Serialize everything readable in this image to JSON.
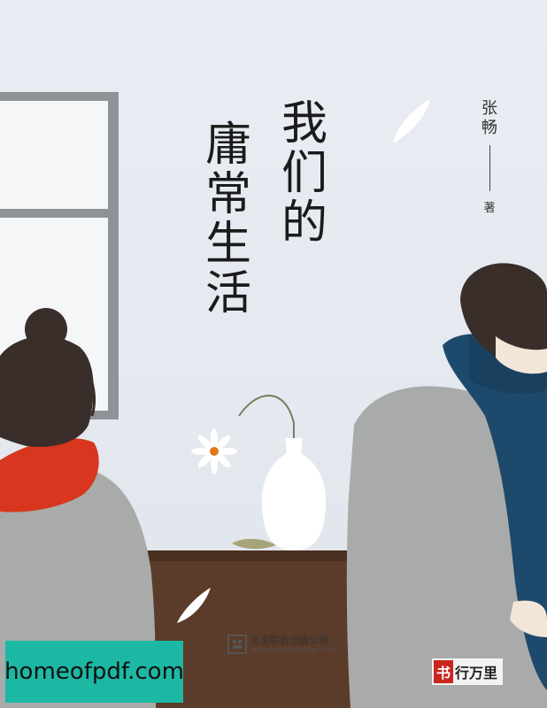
{
  "book": {
    "title_col_1": [
      "我",
      "们",
      "的"
    ],
    "title_col_2": [
      "庸",
      "常",
      "生",
      "活"
    ],
    "author_name": [
      "张",
      "畅"
    ],
    "author_role": "著"
  },
  "publisher": {
    "name_cn": "北京联合出版公司",
    "name_en": "Beijing United Publishing Co.,Ltd"
  },
  "brand": {
    "mark": "书",
    "text": "行万里"
  },
  "watermark": {
    "text": "homeofpdf.com"
  },
  "colors": {
    "background": "#e6eaf0",
    "window_frame": "#8f9398",
    "girl_scarf": "#d9361f",
    "boy_scarf": "#1d4a6c",
    "sweater": "#a7a9a9",
    "table": "#5a3a28",
    "watermark_bg": "#1cb8a4",
    "brand_red": "#c9261f"
  }
}
